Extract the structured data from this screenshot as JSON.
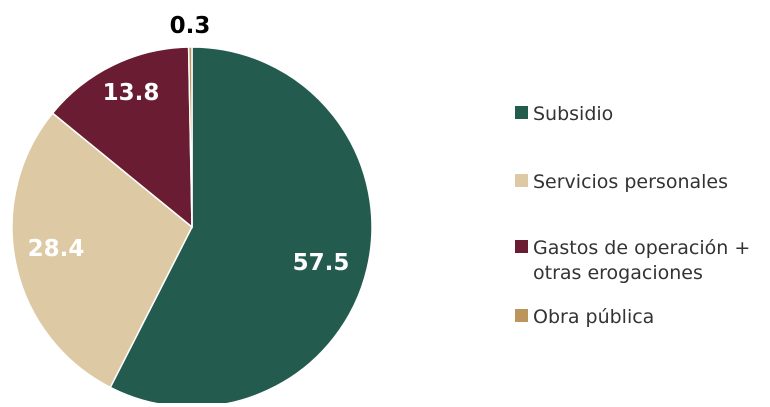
{
  "chart_data": {
    "type": "pie",
    "title": "",
    "categories": [
      "Subsidio",
      "Servicios personales",
      "Gastos de operación + otras erogaciones",
      "Obra pública"
    ],
    "values": [
      57.5,
      28.4,
      13.8,
      0.3
    ],
    "data_labels": [
      "57.5",
      "28.4",
      "13.8",
      "0.3"
    ],
    "colors": [
      "#235B4E",
      "#DDC9A3",
      "#691C32",
      "#BC955C"
    ],
    "legend": {
      "placement": "right",
      "entries": [
        {
          "lines": [
            "Subsidio"
          ],
          "color": "#235B4E"
        },
        {
          "lines": [
            "Servicios personales"
          ],
          "color": "#DDC9A3"
        },
        {
          "lines": [
            "Gastos de operación +",
            "otras erogaciones"
          ],
          "color": "#691C32"
        },
        {
          "lines": [
            "Obra pública"
          ],
          "color": "#BC955C"
        }
      ]
    },
    "start_angle_deg": 0,
    "direction": "clockwise"
  }
}
